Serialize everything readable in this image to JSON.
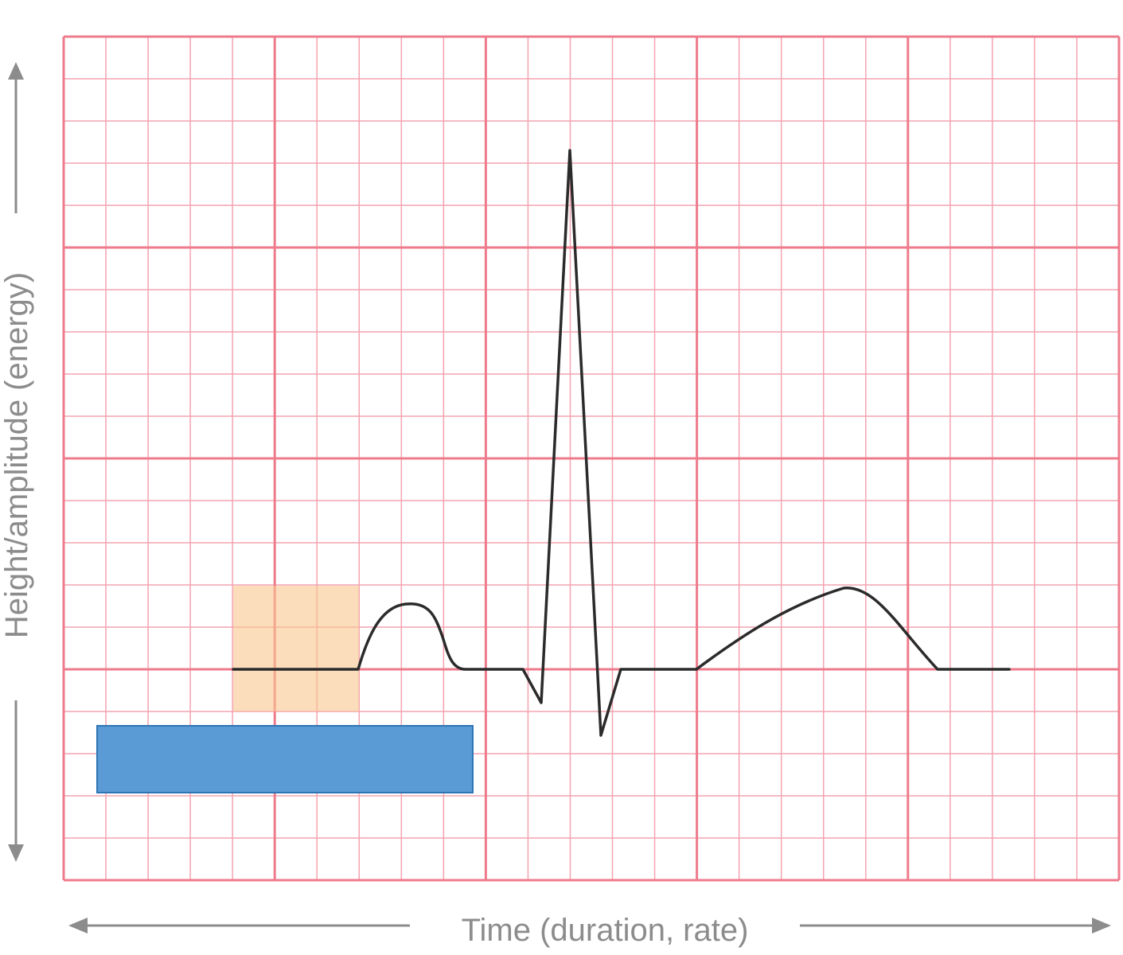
{
  "axes": {
    "x_label": "Time (duration, rate)",
    "y_label": "Height/amplitude (energy)"
  },
  "grid": {
    "major_color": "#ee7b8c",
    "minor_color": "#f4a3b0",
    "major_columns": 5,
    "major_rows": 4,
    "minor_per_major": 5
  },
  "colors": {
    "waveform": "#2b2b2b",
    "highlight_box": "#f9c48e",
    "blue_box": "#5b9bd5",
    "blue_box_border": "#2e75b6",
    "axis_arrow": "#8c8c8c"
  },
  "waveform": {
    "name": "ECG complex",
    "segments": [
      "baseline",
      "P wave",
      "PR segment",
      "QRS complex",
      "ST segment",
      "T wave",
      "baseline"
    ]
  }
}
